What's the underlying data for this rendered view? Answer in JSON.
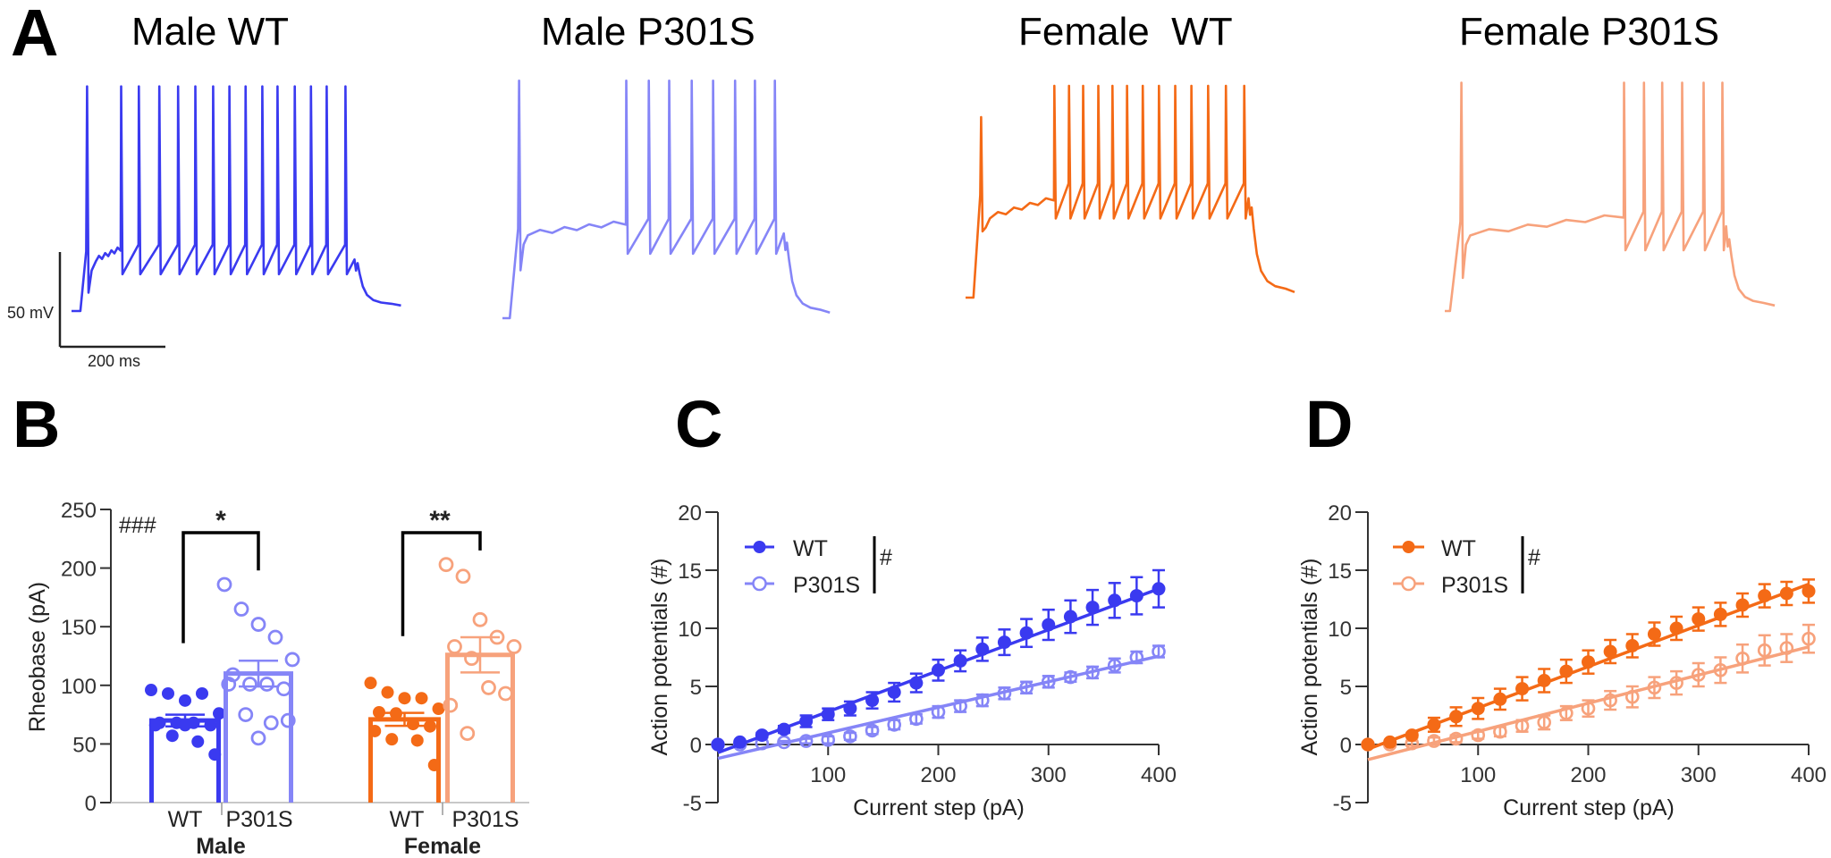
{
  "panel_labels": {
    "a": "A",
    "b": "B",
    "c": "C",
    "d": "D"
  },
  "colors": {
    "male_wt": "#3a3af0",
    "male_p301s": "#8585f7",
    "female_wt": "#f46a16",
    "female_p301s": "#f7a27c",
    "axis": "#333333",
    "baseline": "#c8c8c8"
  },
  "chart_data": [
    {
      "type": "line",
      "panel": "A",
      "scale_bar": {
        "voltage_label": "50 mV",
        "time_label": "200 ms",
        "voltage_mV": 50,
        "time_ms": 200
      },
      "traces": [
        {
          "title": "Male WT",
          "color_key": "male_wt",
          "step_on_ms": 17,
          "step_off_ms": 547,
          "duration_ms": 630,
          "spike_times_ms": [
            29,
            94,
            128,
            167,
            203,
            236,
            270,
            301,
            332,
            364,
            393,
            426,
            457,
            487,
            523
          ]
        },
        {
          "title": "Male P301S",
          "color_key": "male_p301s",
          "step_on_ms": 14,
          "step_off_ms": 544,
          "duration_ms": 626,
          "spike_times_ms": [
            31,
            236,
            279,
            318,
            361,
            402,
            444,
            482,
            520
          ]
        },
        {
          "title": "Female  WT",
          "color_key": "female_wt",
          "step_on_ms": 15,
          "step_off_ms": 547,
          "duration_ms": 629,
          "spike_times_ms": [
            29,
            169,
            197,
            224,
            253,
            280,
            308,
            338,
            369,
            400,
            431,
            463,
            497,
            532
          ]
        },
        {
          "title": "Female P301S",
          "color_key": "female_p301s",
          "step_on_ms": 10,
          "step_off_ms": 544,
          "duration_ms": 631,
          "spike_times_ms": [
            31,
            342,
            380,
            415,
            453,
            494,
            530
          ]
        }
      ]
    },
    {
      "type": "bar",
      "panel": "B",
      "ylabel": "Rheobase (pA)",
      "ylim": [
        0,
        250
      ],
      "yticks": [
        "0",
        "50",
        "100",
        "150",
        "200",
        "250"
      ],
      "annotation": "###",
      "groups": [
        {
          "label": "Male",
          "significance": "*",
          "bars": [
            {
              "label": "WT",
              "color_key": "male_wt",
              "filled": true,
              "mean": 70,
              "sem": 5,
              "points": [
                96,
                93,
                87,
                93,
                76,
                68,
                68,
                68,
                66,
                66,
                57,
                52,
                41,
                66
              ]
            },
            {
              "label": "P301S",
              "color_key": "male_p301s",
              "filled": false,
              "mean": 110,
              "sem": 11,
              "points": [
                186,
                165,
                152,
                141,
                122,
                109,
                101,
                101,
                97,
                101,
                75,
                68,
                70,
                55
              ]
            }
          ]
        },
        {
          "label": "Female",
          "significance": "**",
          "bars": [
            {
              "label": "WT",
              "color_key": "female_wt",
              "filled": true,
              "mean": 71,
              "sem": 5.5,
              "points": [
                102,
                94,
                89,
                89,
                80,
                77,
                76,
                67,
                65,
                61,
                54,
                53,
                32
              ]
            },
            {
              "label": "P301S",
              "color_key": "female_p301s",
              "filled": false,
              "mean": 126,
              "sem": 15,
              "points": [
                203,
                193,
                156,
                141,
                133,
                133,
                123,
                98,
                93,
                83,
                59
              ]
            }
          ]
        }
      ]
    },
    {
      "type": "line",
      "panel": "C",
      "xlabel": "Current step (pA)",
      "ylabel": "Action potentials (#)",
      "xlim": [
        0,
        400
      ],
      "ylim": [
        -5,
        20
      ],
      "xticks": [
        "100",
        "200",
        "300",
        "400"
      ],
      "yticks": [
        "-5",
        "0",
        "5",
        "10",
        "15",
        "20"
      ],
      "legend_annotation": "#",
      "x": [
        0,
        20,
        40,
        60,
        80,
        100,
        120,
        140,
        160,
        180,
        200,
        220,
        240,
        260,
        280,
        300,
        320,
        340,
        360,
        380,
        400
      ],
      "series": [
        {
          "name": "WT",
          "color_key": "male_wt",
          "filled": true,
          "values": [
            0,
            0.2,
            0.8,
            1.3,
            2.0,
            2.6,
            3.1,
            3.8,
            4.5,
            5.3,
            6.4,
            7.2,
            8.2,
            8.8,
            9.6,
            10.3,
            11.0,
            11.8,
            12.4,
            12.8,
            13.4
          ],
          "sem": [
            0,
            0.1,
            0.2,
            0.3,
            0.5,
            0.5,
            0.6,
            0.7,
            0.8,
            0.8,
            0.9,
            0.9,
            1.0,
            1.1,
            1.2,
            1.3,
            1.4,
            1.5,
            1.5,
            1.6,
            1.6
          ],
          "fit": [
            -0.7,
            13.4
          ]
        },
        {
          "name": "P301S",
          "color_key": "male_p301s",
          "filled": false,
          "values": [
            0,
            0,
            0.1,
            0.2,
            0.3,
            0.4,
            0.7,
            1.2,
            1.7,
            2.2,
            2.8,
            3.3,
            3.8,
            4.4,
            4.9,
            5.4,
            5.8,
            6.2,
            6.8,
            7.5,
            8.0
          ],
          "sem": [
            0,
            0,
            0,
            0.1,
            0.2,
            0.3,
            0.3,
            0.3,
            0.4,
            0.4,
            0.5,
            0.5,
            0.5,
            0.5,
            0.5,
            0.5,
            0.4,
            0.5,
            0.6,
            0.5,
            0.5
          ],
          "fit": [
            -1.2,
            7.6
          ]
        }
      ]
    },
    {
      "type": "line",
      "panel": "D",
      "xlabel": "Current step (pA)",
      "ylabel": "Action potentials (#)",
      "xlim": [
        0,
        400
      ],
      "ylim": [
        -5,
        20
      ],
      "xticks": [
        "100",
        "200",
        "300",
        "400"
      ],
      "yticks": [
        "-5",
        "0",
        "5",
        "10",
        "15",
        "20"
      ],
      "legend_annotation": "#",
      "x": [
        0,
        20,
        40,
        60,
        80,
        100,
        120,
        140,
        160,
        180,
        200,
        220,
        240,
        260,
        280,
        300,
        320,
        340,
        360,
        380,
        400
      ],
      "series": [
        {
          "name": "WT",
          "color_key": "female_wt",
          "filled": true,
          "values": [
            0,
            0.2,
            0.8,
            1.7,
            2.4,
            3.1,
            3.9,
            4.8,
            5.5,
            6.3,
            7.1,
            8.0,
            8.5,
            9.5,
            10.0,
            10.8,
            11.2,
            12.0,
            12.8,
            13.0,
            13.2
          ],
          "sem": [
            0,
            0.1,
            0.2,
            0.6,
            0.8,
            0.9,
            0.9,
            1.0,
            1.0,
            1.0,
            1.0,
            1.0,
            1.0,
            1.0,
            1.0,
            1.0,
            1.0,
            1.0,
            1.0,
            1.0,
            1.0
          ],
          "fit": [
            -0.4,
            13.8
          ]
        },
        {
          "name": "P301S",
          "color_key": "female_p301s",
          "filled": false,
          "values": [
            0,
            0,
            0.1,
            0.3,
            0.5,
            0.8,
            1.1,
            1.6,
            1.9,
            2.7,
            3.1,
            3.8,
            4.1,
            4.9,
            5.3,
            6.0,
            6.4,
            7.4,
            8.1,
            8.3,
            9.1
          ],
          "sem": [
            0,
            0.2,
            0.2,
            0.3,
            0.3,
            0.3,
            0.4,
            0.5,
            0.6,
            0.6,
            0.7,
            0.8,
            0.9,
            0.9,
            1.0,
            1.0,
            1.1,
            1.2,
            1.3,
            1.2,
            1.2
          ],
          "fit": [
            -1.3,
            8.4
          ]
        }
      ]
    }
  ]
}
